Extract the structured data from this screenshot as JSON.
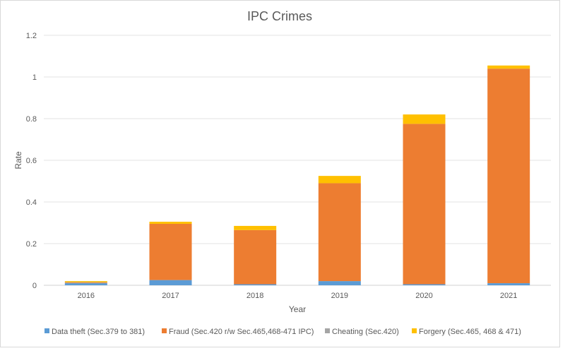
{
  "chart_data": {
    "type": "bar",
    "stacked": true,
    "title": "IPC Crimes",
    "xlabel": "Year",
    "ylabel": "Rate",
    "categories": [
      "2016",
      "2017",
      "2018",
      "2019",
      "2020",
      "2021"
    ],
    "ylim": [
      0,
      1.2
    ],
    "yticks": [
      "0",
      "0.2",
      "0.4",
      "0.6",
      "0.8",
      "1",
      "1.2"
    ],
    "grid": true,
    "legend_position": "bottom",
    "series": [
      {
        "name": "Data theft (Sec.379 to 381)",
        "color": "#5b9bd5",
        "values": [
          0.01,
          0.025,
          0.005,
          0.02,
          0.005,
          0.01
        ]
      },
      {
        "name": "Fraud (Sec.420 r/w Sec.465,468-471 IPC)",
        "color": "#ed7d31",
        "values": [
          0.003,
          0.27,
          0.26,
          0.47,
          0.77,
          1.03
        ]
      },
      {
        "name": "Cheating (Sec.420)",
        "color": "#a5a5a5",
        "values": [
          0.002,
          0.0,
          0.0,
          0.0,
          0.0,
          0.0
        ]
      },
      {
        "name": "Forgery (Sec.465, 468 & 471)",
        "color": "#ffc000",
        "values": [
          0.005,
          0.01,
          0.02,
          0.035,
          0.045,
          0.015
        ]
      }
    ]
  }
}
